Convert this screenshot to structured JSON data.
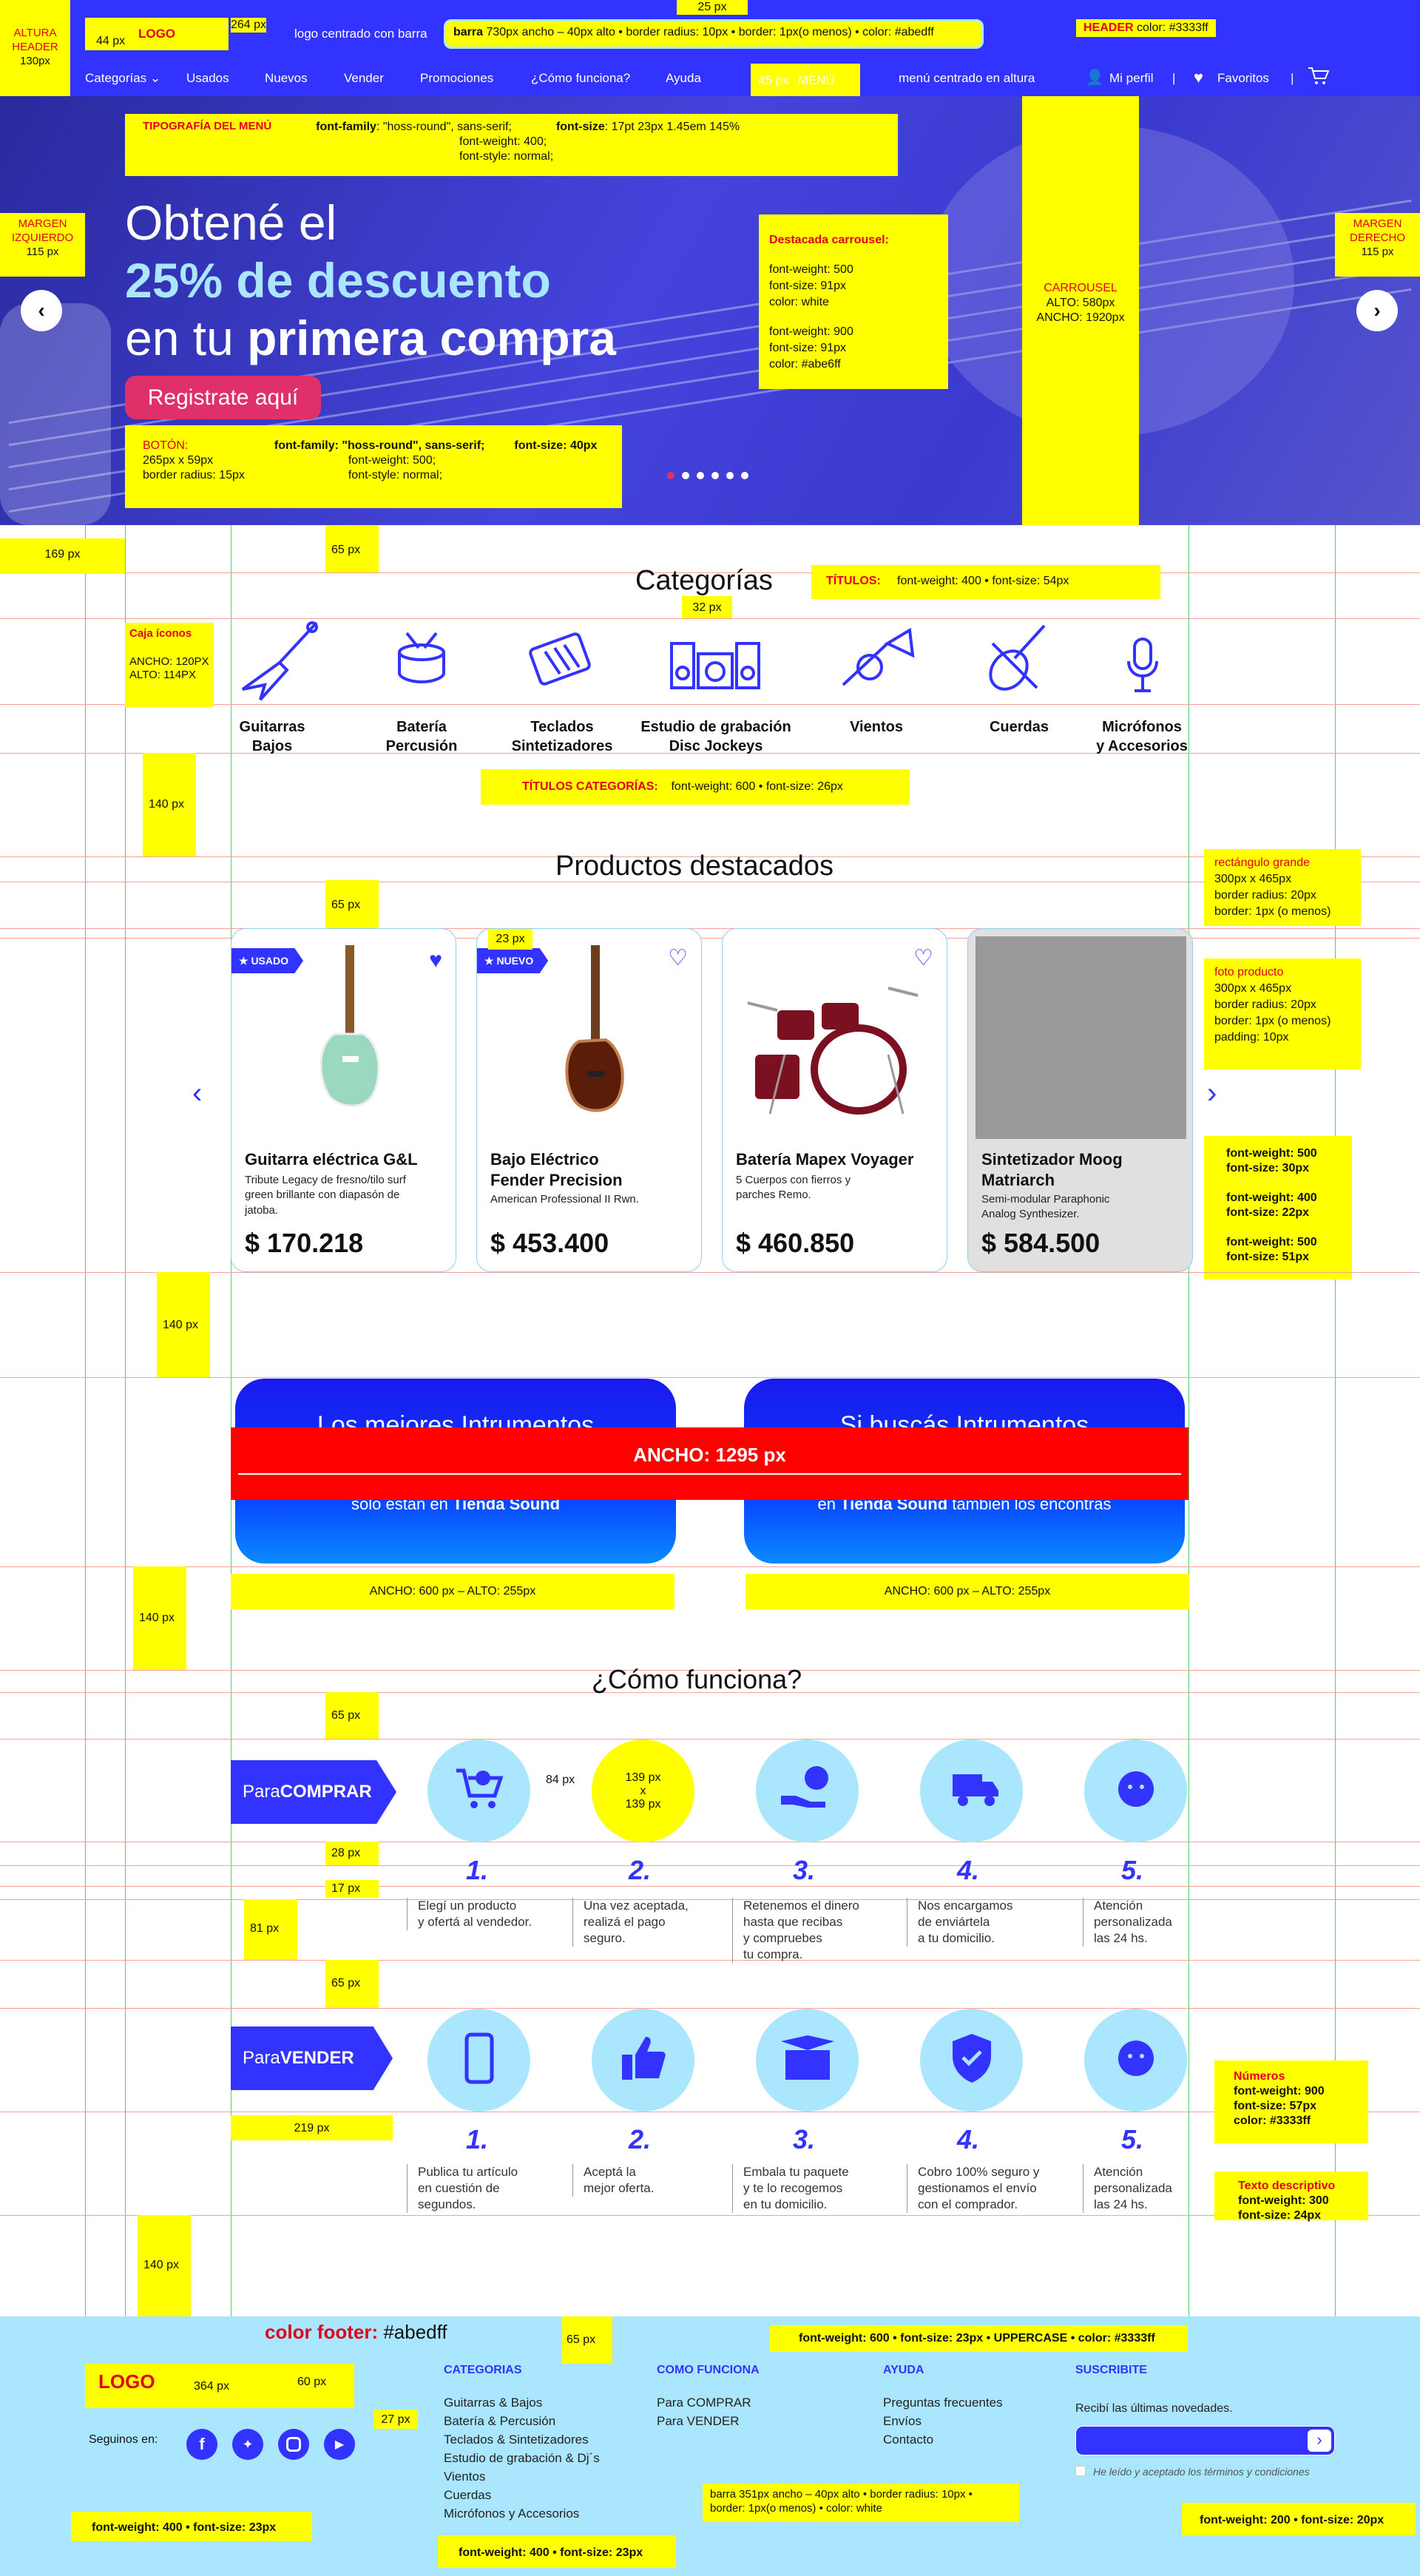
{
  "header": {
    "altura_label": "ALTURA\nHEADER",
    "altura_value": "130px",
    "dim_264": "264 px",
    "dim_44": "44 px",
    "logo": "LOGO",
    "logo_centrado": "logo centrado con barra",
    "barra_spec_bold": "barra",
    "barra_spec": "730px ancho – 40px alto • border radius: 10px • border: 1px(o menos) • color: #abedff",
    "dim_25": "25 px",
    "header_label": "HEADER",
    "header_color": "color: #3333ff",
    "menu_label": "MENÚ",
    "dim_45": "45 px",
    "menu_centrado": "menú centrado en altura",
    "nav": [
      "Categorías",
      "Usados",
      "Nuevos",
      "Vender",
      "Promociones",
      "¿Cómo funciona?",
      "Ayuda"
    ],
    "mi_perfil": "Mi perfil",
    "favoritos": "Favoritos",
    "sep": "|"
  },
  "menu_typo": {
    "title": "TIPOGRAFÍA DEL MENÚ",
    "ff_label": "font-family",
    "ff_value": ": \"hoss-round\", sans-serif;",
    "fw": "font-weight: 400;",
    "fs_style": "font-style: normal;",
    "size_label": "font-size",
    "sizes": ":   17pt    23px    1.45em    145%"
  },
  "hero": {
    "line1": "Obtené el",
    "line2": "25% de descuento",
    "line3a": "en tu ",
    "line3b": "primera compra",
    "cta": "Registrate aquí",
    "margen_izq": "MARGEN\nIZQUIERDO",
    "margen_izq_val": "115 px",
    "margen_der": "MARGEN\nDERECHO",
    "margen_der_val": "115 px",
    "carrousel_title": "CARROUSEL",
    "carrousel_alto": "ALTO: 580px",
    "carrousel_ancho": "ANCHO: 1920px",
    "destacada_title": "Destacada carrousel:",
    "destacada_l1": "font-weight: 500",
    "destacada_l2": "font-size: 91px",
    "destacada_l3": "color: white",
    "destacada_l4": "font-weight: 900",
    "destacada_l5": "font-size: 91px",
    "destacada_l6": "color: #abe6ff",
    "boton_title": "BOTÓN:",
    "boton_l1": "265px x 59px",
    "boton_l2": "border radius: 15px",
    "boton_ff": "font-family: \"hoss-round\", sans-serif;",
    "boton_fs": "font-size: 40px",
    "boton_fw": "font-weight: 500;",
    "boton_style": "font-style: normal;",
    "dots": 6
  },
  "categorias": {
    "title": "Categorías",
    "dim_169": "169 px",
    "dim_65": "65 px",
    "dim_32": "32 px",
    "titulos_label": "TÍTULOS:",
    "titulos_spec": "font-weight: 400  •  font-size: 54px",
    "caja_title": "Caja íconos",
    "caja_ancho": "ANCHO: 120PX",
    "caja_alto": "ALTO: 114PX",
    "items": [
      {
        "icon": "guitar-icon",
        "l1": "Guitarras",
        "l2": "Bajos"
      },
      {
        "icon": "drum-icon",
        "l1": "Batería",
        "l2": "Percusión"
      },
      {
        "icon": "keyboard-icon",
        "l1": "Teclados",
        "l2": "Sintetizadores"
      },
      {
        "icon": "studio-icon",
        "l1": "Estudio de grabación",
        "l2": "Disc Jockeys"
      },
      {
        "icon": "trumpet-icon",
        "l1": "Vientos",
        "l2": ""
      },
      {
        "icon": "violin-icon",
        "l1": "Cuerdas",
        "l2": ""
      },
      {
        "icon": "microphone-icon",
        "l1": "Micrófonos",
        "l2": "y Accesorios"
      }
    ],
    "dim_140": "140 px",
    "titulos_cat_label": "TÍTULOS CATEGORÍAS:",
    "titulos_cat_spec": "font-weight: 600  •  font-size: 26px"
  },
  "productos": {
    "title": "Productos destacados",
    "dim_65": "65 px",
    "dim_23": "23 px",
    "rect_title": "rectángulo grande",
    "rect_l1": "300px x 465px",
    "rect_l2": "border radius: 20px",
    "rect_l3": "border: 1px (o menos)",
    "foto_title": "foto producto",
    "foto_l1": "300px x 465px",
    "foto_l2": "border radius: 20px",
    "foto_l3": "border: 1px (o menos)",
    "foto_l4": "padding: 10px",
    "spec_title": "font-weight: 500\nfont-size: 30px",
    "spec_desc": "font-weight: 400\nfont-size: 22px",
    "spec_price": "font-weight: 500\nfont-size: 51px",
    "items": [
      {
        "badge": "★ USADO",
        "title": "Guitarra eléctrica G&L",
        "desc": "Tribute Legacy de fresno/tilo surf green brillante con diapasón de jatoba.",
        "price": "$ 170.218",
        "fav": "♥"
      },
      {
        "badge": "★ NUEVO",
        "title": "Bajo Eléctrico Fender Precision",
        "desc": "American Professional II Rwn.",
        "price": "$ 453.400",
        "fav": "♡"
      },
      {
        "badge": "",
        "title": "Batería Mapex Voyager",
        "desc": "5 Cuerpos con fierros y parches Remo.",
        "price": "$ 460.850",
        "fav": "♡"
      },
      {
        "badge": "",
        "title": "Sintetizador Moog Matriarch",
        "desc": "Semi-modular Paraphonic Analog Synthesizer.",
        "price": "$ 584.500",
        "fav": ""
      }
    ]
  },
  "promos": {
    "dim_140": "140 px",
    "ancho": "ANCHO: 1295 px",
    "left_title": "Los mejores Intrumentos",
    "left_sub_a": "sólo están en ",
    "left_sub_b": "Tienda Sound",
    "right_title": "Si buscás Intrumentos",
    "right_sub_a": "en ",
    "right_sub_b": "Tienda Sound",
    "right_sub_c": " también los encontrás",
    "spec_left": "ANCHO: 600 px – ALTO: 255px",
    "spec_right": "ANCHO: 600 px – ALTO: 255px"
  },
  "como": {
    "title": "¿Cómo funciona?",
    "dim_65": "65 px",
    "dim_84": "84 px",
    "dim_139": "139 px\nx\n139 px",
    "dim_28": "28 px",
    "dim_17": "17 px",
    "dim_81": "81 px",
    "dim_65b": "65 px",
    "dim_219": "219 px",
    "comprar_a": "Para ",
    "comprar_b": "COMPRAR",
    "vender_a": "Para ",
    "vender_b": "VENDER",
    "comprar_steps": [
      {
        "n": "1.",
        "d": "Elegí un producto\ny ofertá al vendedor.",
        "icon": "cart-icon"
      },
      {
        "n": "2.",
        "d": "Una vez aceptada,\nrealizá el pago\n seguro.",
        "icon": ""
      },
      {
        "n": "3.",
        "d": "Retenemos el dinero\nhasta que recibas\ny compruebes\ntu compra.",
        "icon": "money-hand-icon"
      },
      {
        "n": "4.",
        "d": "Nos encargamos\nde enviártela\na tu domicilio.",
        "icon": "truck-icon"
      },
      {
        "n": "5.",
        "d": "Atención\npersonalizada\nlas 24 hs.",
        "icon": "support-icon"
      }
    ],
    "vender_steps": [
      {
        "n": "1.",
        "d": "Publica tu artículo\nen cuestión de\nsegundos.",
        "icon": "phone-icon"
      },
      {
        "n": "2.",
        "d": "Aceptá la\nmejor oferta.",
        "icon": "thumbs-up-icon"
      },
      {
        "n": "3.",
        "d": "Embala tu paquete\ny te lo recogemos\nen tu domicilio.",
        "icon": "box-icon"
      },
      {
        "n": "4.",
        "d": "Cobro 100% seguro y\ngestionamos el envío\ncon el comprador.",
        "icon": "shield-check-icon"
      },
      {
        "n": "5.",
        "d": "Atención\npersonalizada\nlas 24 hs.",
        "icon": "support-icon"
      }
    ],
    "numeros_title": "Números",
    "numeros_spec": "font-weight: 900\nfont-size: 57px\ncolor: #3333ff",
    "texto_title": "Texto descriptivo",
    "texto_spec": "font-weight: 300\nfont-size: 24px",
    "dim_140": "140 px"
  },
  "footer": {
    "color_label": "color footer:",
    "color_value": "#abedff",
    "dim_65": "65 px",
    "header_spec": "font-weight: 600 • font-size: 23px • UPPERCASE • color: #3333ff",
    "logo": "LOGO",
    "dim_364": "364 px",
    "dim_60": "60 px",
    "dim_27": "27 px",
    "seguinos": "Seguinos en:",
    "cat_title": "CATEGORIAS",
    "cat_items": [
      "Guitarras & Bajos",
      "Batería  & Percusión",
      "Teclados & Sintetizadores",
      "Estudio de grabación & Dj´s",
      "Vientos",
      "Cuerdas",
      "Micrófonos y Accesorios"
    ],
    "como_title": "COMO FUNCIONA",
    "como_items": [
      "Para COMPRAR",
      "Para VENDER"
    ],
    "ayuda_title": "AYUDA",
    "ayuda_items": [
      "Preguntas frecuentes",
      "Envíos",
      "Contacto"
    ],
    "sus_title": "SUSCRIBITE",
    "sus_text": "Recibí las últimas novedades.",
    "terms": "He leído y aceptado los términos y condiciones",
    "barra_spec": "barra 351px ancho – 40px alto • border radius: 10px •\nborder: 1px(o menos) • color: white",
    "spec_left": "font-weight: 400 • font-size: 23px",
    "spec_mid": "font-weight: 400 • font-size: 23px",
    "spec_right": "font-weight: 200 • font-size: 20px"
  },
  "colors": {
    "header": "#3333ff",
    "footer": "#abedff",
    "accent": "#abe6ff",
    "cta": "#e0306a",
    "annot": "#ffff00"
  }
}
